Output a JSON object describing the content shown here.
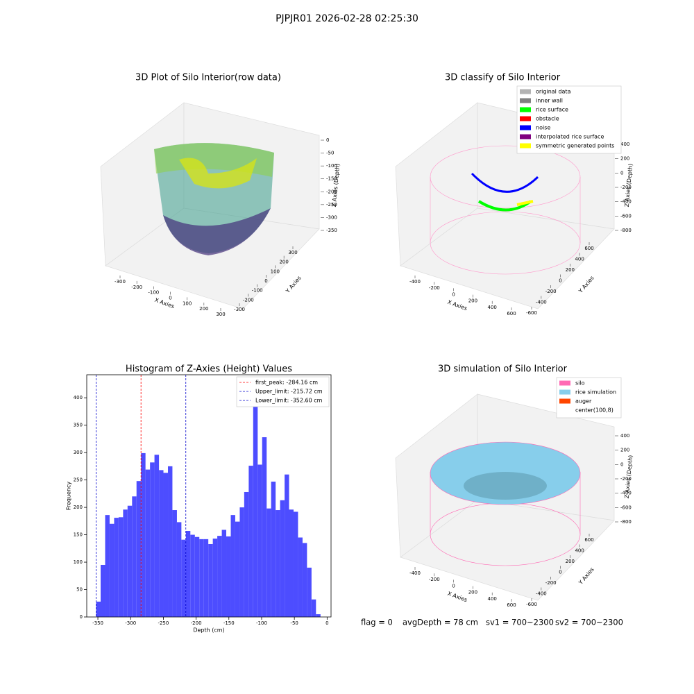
{
  "suptitle": "PJPJR01 2026-02-28 02:25:30",
  "footer": [
    "flag = 0",
    "avgDepth = 78 cm",
    "sv1 = 700~2300",
    "sv2 = 700~2300"
  ],
  "chart_data": [
    {
      "type": "scatter3d",
      "title": "3D Plot of Silo Interior(row data)",
      "xlabel": "X Axies",
      "ylabel": "Y Axies",
      "zlabel": "Z Axies (Depth)",
      "xticks": [
        -300,
        -200,
        -100,
        0,
        100,
        200,
        300
      ],
      "yticks": [
        -300,
        -200,
        -100,
        0,
        100,
        200,
        300
      ],
      "zticks": [
        0,
        -50,
        -100,
        -150,
        -200,
        -250,
        -300,
        -350
      ]
    },
    {
      "type": "scatter3d",
      "title": "3D classify of Silo Interior",
      "xlabel": "X Axies",
      "ylabel": "Y Axies",
      "zlabel": "Z Axies (Depth)",
      "xticks": [
        -400,
        -200,
        0,
        200,
        400,
        600
      ],
      "yticks": [
        -600,
        -400,
        -200,
        0,
        200,
        400,
        600
      ],
      "zticks": [
        400,
        200,
        0,
        -200,
        -400,
        -600,
        -800
      ],
      "legend": [
        {
          "name": "original data",
          "color": "#b3b3b3"
        },
        {
          "name": "inner wall",
          "color": "#808080"
        },
        {
          "name": "rice surface",
          "color": "#00ff00"
        },
        {
          "name": "obstacle",
          "color": "#ff0000"
        },
        {
          "name": "noise",
          "color": "#0000ff"
        },
        {
          "name": "interpolated rice surface",
          "color": "#800080"
        },
        {
          "name": "symmetric generated points",
          "color": "#ffff00"
        }
      ]
    },
    {
      "type": "histogram",
      "title": "Histogram of Z-Axies (Height) Values",
      "xlabel": "Depth (cm)",
      "ylabel": "Frequency",
      "color": "#4d4dff",
      "bins": [
        -352.6,
        -345.8,
        -338.9,
        -332.1,
        -325.2,
        -318.4,
        -311.5,
        -304.7,
        -297.8,
        -291.0,
        -284.1,
        -277.3,
        -270.4,
        -263.6,
        -256.7,
        -249.9,
        -243.0,
        -236.2,
        -229.3,
        -222.5,
        -215.6,
        -208.8,
        -201.9,
        -195.1,
        -188.2,
        -181.4,
        -174.5,
        -167.7,
        -160.8,
        -154.0,
        -147.1,
        -140.3,
        -133.4,
        -126.6,
        -119.7,
        -112.9,
        -106.0,
        -99.2,
        -92.3,
        -85.5,
        -78.6,
        -71.8,
        -64.9,
        -58.1,
        -51.2,
        -44.4,
        -37.5,
        -30.7,
        -23.8,
        -17.0,
        -10.1
      ],
      "values": [
        28,
        95,
        186,
        170,
        181,
        182,
        196,
        203,
        220,
        248,
        299,
        269,
        282,
        296,
        268,
        263,
        275,
        195,
        173,
        141,
        157,
        150,
        146,
        142,
        142,
        133,
        143,
        148,
        159,
        147,
        186,
        174,
        200,
        228,
        276,
        415,
        278,
        328,
        198,
        247,
        195,
        213,
        260,
        196,
        192,
        145,
        135,
        90,
        32,
        5
      ],
      "xlim": [
        -367,
        6
      ],
      "ylim": [
        0,
        442
      ],
      "xticks": [
        -350,
        -300,
        -250,
        -200,
        -150,
        -100,
        -50,
        0
      ],
      "yticks": [
        0,
        50,
        100,
        150,
        200,
        250,
        300,
        350,
        400
      ],
      "vlines": [
        {
          "name": "first_peak: -284.16 cm",
          "value": -284.16,
          "color": "#ff0000"
        },
        {
          "name": "Upper_limit: -215.72 cm",
          "value": -215.72,
          "color": "#0000cc"
        },
        {
          "name": "Lower_limit: -352.60 cm",
          "value": -352.6,
          "color": "#0000cc"
        }
      ]
    },
    {
      "type": "surface3d",
      "title": "3D simulation of Silo Interior",
      "xlabel": "X Axies",
      "ylabel": "Y Axies",
      "zlabel": "Z Axies (Depth)",
      "xticks": [
        -400,
        -200,
        0,
        200,
        400,
        600
      ],
      "yticks": [
        -600,
        -400,
        -200,
        0,
        200,
        400,
        600
      ],
      "zticks": [
        400,
        200,
        0,
        -200,
        -400,
        -600,
        -800
      ],
      "legend": [
        {
          "name": "silo",
          "color": "#ff69b4"
        },
        {
          "name": "rice simulation",
          "color": "#87ceeb"
        },
        {
          "name": "auger",
          "color": "#ff4500"
        },
        {
          "name": "center(100,8)",
          "color": "#ffffff"
        }
      ]
    }
  ]
}
